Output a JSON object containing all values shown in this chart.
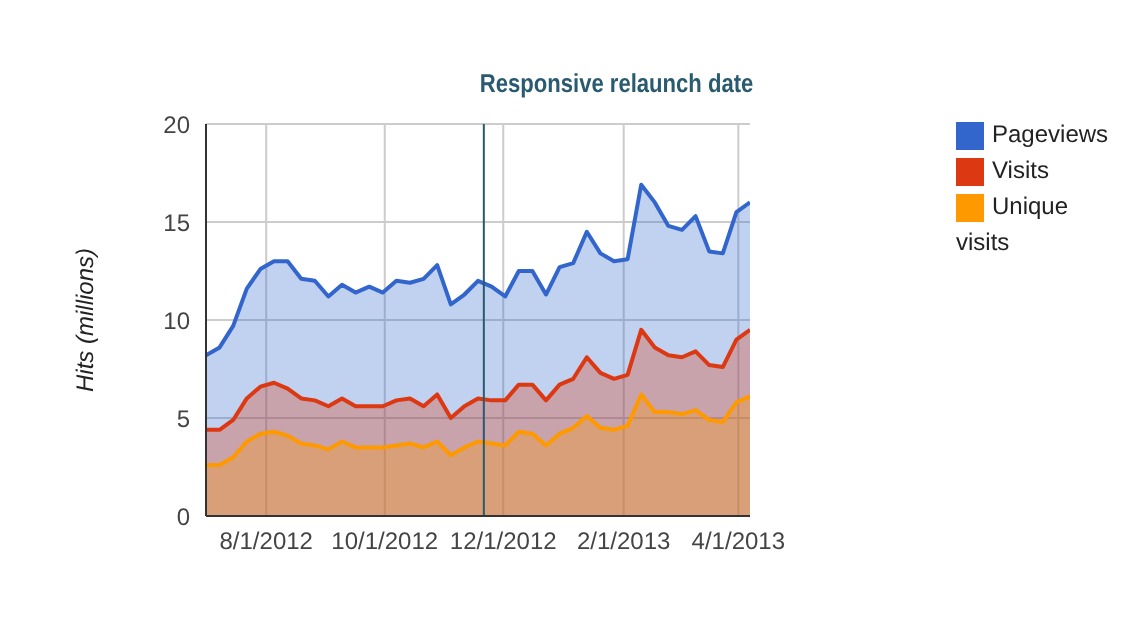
{
  "chart_data": {
    "type": "area",
    "ylabel": "Hits (millions)",
    "x": [
      "2012-07-01",
      "2012-07-08",
      "2012-07-15",
      "2012-07-22",
      "2012-07-29",
      "2012-08-05",
      "2012-08-12",
      "2012-08-19",
      "2012-08-26",
      "2012-09-02",
      "2012-09-09",
      "2012-09-16",
      "2012-09-23",
      "2012-09-30",
      "2012-10-07",
      "2012-10-14",
      "2012-10-21",
      "2012-10-28",
      "2012-11-04",
      "2012-11-11",
      "2012-11-18",
      "2012-11-25",
      "2012-12-02",
      "2012-12-09",
      "2012-12-16",
      "2012-12-23",
      "2012-12-30",
      "2013-01-06",
      "2013-01-13",
      "2013-01-20",
      "2013-01-27",
      "2013-02-03",
      "2013-02-10",
      "2013-02-17",
      "2013-02-24",
      "2013-03-03",
      "2013-03-10",
      "2013-03-17",
      "2013-03-24",
      "2013-03-31",
      "2013-04-07"
    ],
    "series": [
      {
        "name": "Pageviews",
        "color": "#3366cc",
        "values": [
          8.2,
          8.6,
          9.7,
          11.6,
          12.6,
          13.0,
          13.0,
          12.1,
          12.0,
          11.2,
          11.8,
          11.4,
          11.7,
          11.4,
          12.0,
          11.9,
          12.1,
          12.8,
          10.8,
          11.3,
          12.0,
          11.7,
          11.2,
          12.5,
          12.5,
          11.3,
          12.7,
          12.9,
          14.5,
          13.4,
          13.0,
          13.1,
          16.9,
          16.0,
          14.8,
          14.6,
          15.3,
          13.5,
          13.4,
          15.5,
          16.0
        ]
      },
      {
        "name": "Visits",
        "color": "#dc3912",
        "values": [
          4.4,
          4.4,
          4.9,
          6.0,
          6.6,
          6.8,
          6.5,
          6.0,
          5.9,
          5.6,
          6.0,
          5.6,
          5.6,
          5.6,
          5.9,
          6.0,
          5.6,
          6.2,
          5.0,
          5.6,
          6.0,
          5.9,
          5.9,
          6.7,
          6.7,
          5.9,
          6.7,
          7.0,
          8.1,
          7.3,
          7.0,
          7.2,
          9.5,
          8.6,
          8.2,
          8.1,
          8.4,
          7.7,
          7.6,
          9.0,
          9.5
        ]
      },
      {
        "name": "Unique visits",
        "color": "#ff9900",
        "values": [
          2.6,
          2.6,
          3.0,
          3.8,
          4.2,
          4.3,
          4.1,
          3.7,
          3.6,
          3.4,
          3.8,
          3.5,
          3.5,
          3.5,
          3.6,
          3.7,
          3.5,
          3.8,
          3.1,
          3.5,
          3.8,
          3.7,
          3.6,
          4.3,
          4.2,
          3.6,
          4.2,
          4.5,
          5.1,
          4.5,
          4.4,
          4.6,
          6.2,
          5.3,
          5.3,
          5.2,
          5.4,
          4.9,
          4.8,
          5.8,
          6.1
        ]
      }
    ],
    "xlim": [
      "2012-07-01",
      "2013-04-07"
    ],
    "xticks": [
      {
        "value": "2012-08-01",
        "label": "8/1/2012"
      },
      {
        "value": "2012-10-01",
        "label": "10/1/2012"
      },
      {
        "value": "2012-12-01",
        "label": "12/1/2012"
      },
      {
        "value": "2013-02-01",
        "label": "2/1/2013"
      },
      {
        "value": "2013-04-01",
        "label": "4/1/2013"
      }
    ],
    "ylim": [
      0,
      20
    ],
    "yticks": [
      0,
      5,
      10,
      15,
      20
    ],
    "ref_lines": [
      {
        "axis": "x",
        "value": "2012-11-21",
        "label": "Responsive relaunch date",
        "color": "#2a5a70"
      }
    ],
    "grid": true,
    "legend": "top right",
    "marker": "none",
    "line_style": "solid"
  }
}
